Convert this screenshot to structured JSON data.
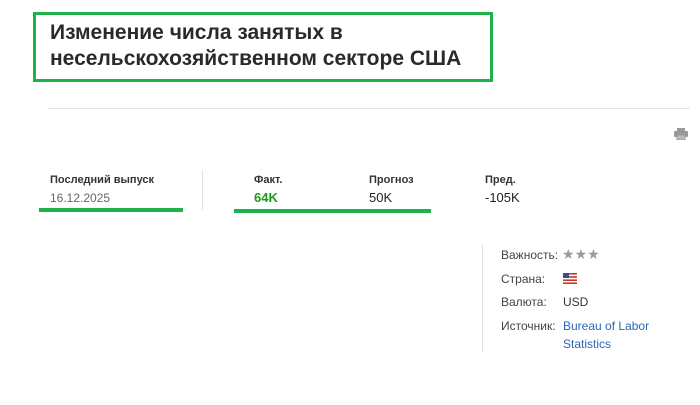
{
  "title": "Изменение числа занятых в несельскохозяйственном секторе США",
  "latest_release": {
    "label": "Последний выпуск",
    "date": "16.12.2025"
  },
  "stats": {
    "actual": {
      "label": "Факт.",
      "value": "64K",
      "color": "#1a9a1a"
    },
    "forecast": {
      "label": "Прогноз",
      "value": "50K"
    },
    "previous": {
      "label": "Пред.",
      "value": "-105K"
    }
  },
  "details": {
    "importance": {
      "label": "Важность:",
      "stars": 3,
      "max_stars": 3
    },
    "country": {
      "label": "Страна:",
      "flag": "us-flag-icon"
    },
    "currency": {
      "label": "Валюта:",
      "value": "USD"
    },
    "source": {
      "label": "Источник:",
      "value": "Bureau of Labor Statistics"
    }
  },
  "icons": {
    "print": "printer-icon"
  },
  "colors": {
    "annotation": "#1fb14a",
    "link": "#2a66b8"
  }
}
